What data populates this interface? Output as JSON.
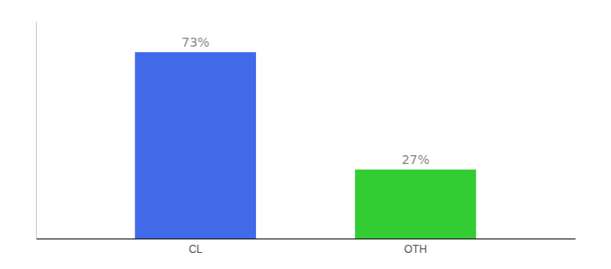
{
  "chart_data": {
    "type": "bar",
    "categories": [
      "CL",
      "OTH"
    ],
    "values": [
      73,
      27
    ],
    "colors": [
      "#4169e8",
      "#33cc33"
    ],
    "ylim": [
      0,
      85
    ],
    "data_labels": true,
    "value_labels": [
      "73%",
      "27%"
    ],
    "tick_labels": "x"
  }
}
